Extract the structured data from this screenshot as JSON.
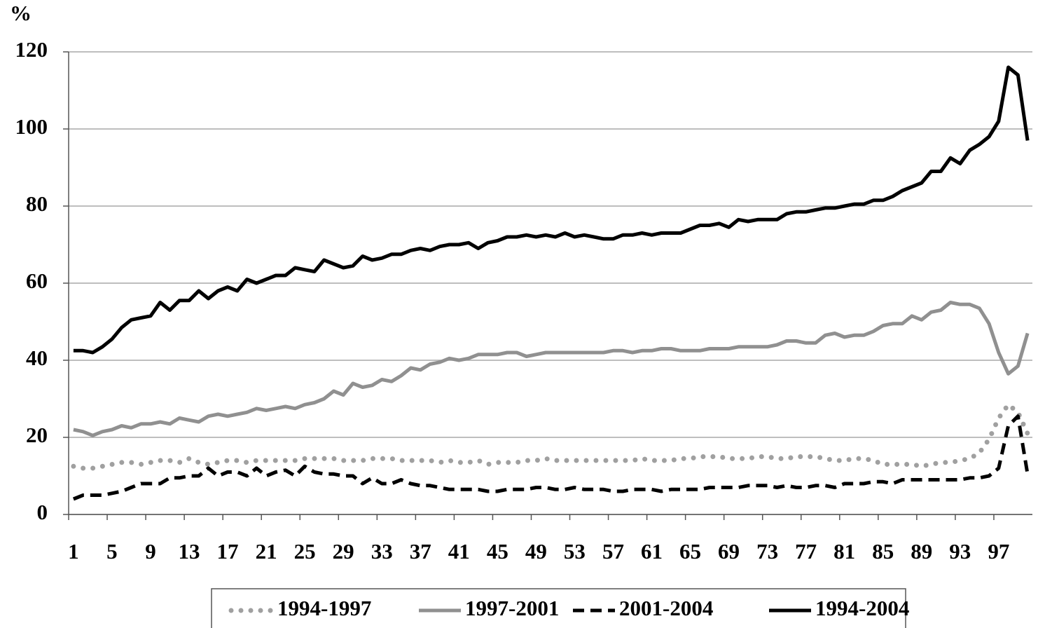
{
  "chart_data": {
    "type": "line",
    "y_label": "%",
    "categories": [
      1,
      null,
      null,
      null,
      5,
      null,
      null,
      null,
      9,
      null,
      null,
      null,
      13,
      null,
      null,
      null,
      17,
      null,
      null,
      null,
      21,
      null,
      null,
      null,
      25,
      null,
      null,
      null,
      29,
      null,
      null,
      null,
      33,
      null,
      null,
      null,
      37,
      null,
      null,
      null,
      41,
      null,
      null,
      null,
      45,
      null,
      null,
      null,
      49,
      null,
      null,
      null,
      53,
      null,
      null,
      null,
      57,
      null,
      null,
      null,
      61,
      null,
      null,
      null,
      65,
      null,
      null,
      null,
      69,
      null,
      null,
      null,
      73,
      null,
      null,
      null,
      77,
      null,
      null,
      null,
      81,
      null,
      null,
      null,
      85,
      null,
      null,
      null,
      89,
      null,
      null,
      null,
      93,
      null,
      null,
      null,
      97,
      null,
      null,
      null
    ],
    "ylim": [
      0,
      120
    ],
    "yticks": [
      0,
      20,
      40,
      60,
      80,
      100,
      120
    ],
    "grid": true,
    "series": [
      {
        "name": "1994-1997",
        "color": "#a0a0a0",
        "style": "dotted",
        "values": [
          12.5,
          12,
          12,
          12.5,
          13,
          13.5,
          13.5,
          13,
          13.5,
          14,
          14,
          13.5,
          14.5,
          13.5,
          13,
          13.5,
          14,
          14,
          13.5,
          14,
          14,
          14,
          14,
          14,
          14.5,
          14.5,
          14.5,
          14.5,
          14,
          14,
          14,
          14.5,
          14.5,
          14.5,
          14,
          14,
          14,
          14,
          13.5,
          14,
          13.5,
          13.5,
          14,
          13,
          13.5,
          13.5,
          13.5,
          14,
          14,
          14.5,
          14,
          14,
          14,
          14,
          14,
          14,
          14,
          14,
          14,
          14.5,
          14,
          14,
          14,
          14.5,
          14.5,
          15,
          15,
          15,
          14.5,
          14.5,
          14.5,
          15,
          15,
          14.5,
          14.5,
          15,
          15,
          15,
          14.5,
          14,
          14,
          14.5,
          14.5,
          14,
          13,
          13,
          13,
          13,
          12.5,
          13,
          13.5,
          13.5,
          14,
          14.5,
          16,
          19.5,
          25,
          28.5,
          26.5,
          21
        ]
      },
      {
        "name": "1997-2001",
        "color": "#909090",
        "style": "solid",
        "values": [
          22,
          21.5,
          20.5,
          21.5,
          22,
          23,
          22.5,
          23.5,
          23.5,
          24,
          23.5,
          25,
          24.5,
          24,
          25.5,
          26,
          25.5,
          26,
          26.5,
          27.5,
          27,
          27.5,
          28,
          27.5,
          28.5,
          29,
          30,
          32,
          31,
          34,
          33,
          33.5,
          35,
          34.5,
          36,
          38,
          37.5,
          39,
          39.5,
          40.5,
          40,
          40.5,
          41.5,
          41.5,
          41.5,
          42,
          42,
          41,
          41.5,
          42,
          42,
          42,
          42,
          42,
          42,
          42,
          42.5,
          42.5,
          42,
          42.5,
          42.5,
          43,
          43,
          42.5,
          42.5,
          42.5,
          43,
          43,
          43,
          43.5,
          43.5,
          43.5,
          43.5,
          44,
          45,
          45,
          44.5,
          44.5,
          46.5,
          47,
          46,
          46.5,
          46.5,
          47.5,
          49,
          49.5,
          49.5,
          51.5,
          50.5,
          52.5,
          53,
          55,
          54.5,
          54.5,
          53.5,
          49.5,
          42,
          36.5,
          38.5,
          47
        ]
      },
      {
        "name": "2001-2004",
        "color": "#000000",
        "style": "dashed",
        "values": [
          4,
          5,
          5,
          5,
          5.5,
          6,
          7,
          8,
          8,
          8,
          9.5,
          9.5,
          10,
          10,
          12,
          10,
          11,
          11,
          10,
          12,
          10,
          11,
          11.5,
          10,
          12.5,
          11,
          10.5,
          10.5,
          10,
          10,
          8,
          9.5,
          8,
          8,
          9,
          8,
          7.5,
          7.5,
          7,
          6.5,
          6.5,
          6.5,
          6.5,
          6,
          6,
          6.5,
          6.5,
          6.5,
          7,
          7,
          6.5,
          6.5,
          7,
          6.5,
          6.5,
          6.5,
          6,
          6,
          6.5,
          6.5,
          6.5,
          6,
          6.5,
          6.5,
          6.5,
          6.5,
          7,
          7,
          7,
          7,
          7.5,
          7.5,
          7.5,
          7,
          7.5,
          7,
          7,
          7.5,
          7.5,
          7,
          8,
          8,
          8,
          8.5,
          8.5,
          8,
          9,
          9,
          9,
          9,
          9,
          9,
          9,
          9.5,
          9.5,
          10,
          12,
          23,
          25.5,
          10.5
        ]
      },
      {
        "name": "1994-2004",
        "color": "#000000",
        "style": "solid",
        "values": [
          42.5,
          42.5,
          42,
          43.5,
          45.5,
          48.5,
          50.5,
          51,
          51.5,
          55,
          53,
          55.5,
          55.5,
          58,
          56,
          58,
          59,
          58,
          61,
          60,
          61,
          62,
          62,
          64,
          63.5,
          63,
          66,
          65,
          64,
          64.5,
          67,
          66,
          66.5,
          67.5,
          67.5,
          68.5,
          69,
          68.5,
          69.5,
          70,
          70,
          70.5,
          69,
          70.5,
          71,
          72,
          72,
          72.5,
          72,
          72.5,
          72,
          73,
          72,
          72.5,
          72,
          71.5,
          71.5,
          72.5,
          72.5,
          73,
          72.5,
          73,
          73,
          73,
          74,
          75,
          75,
          75.5,
          74.5,
          76.5,
          76,
          76.5,
          76.5,
          76.5,
          78,
          78.5,
          78.5,
          79,
          79.5,
          79.5,
          80,
          80.5,
          80.5,
          81.5,
          81.5,
          82.5,
          84,
          85,
          86,
          89,
          89,
          92.5,
          91,
          94.5,
          96,
          98,
          102,
          116,
          114,
          97
        ]
      }
    ]
  }
}
